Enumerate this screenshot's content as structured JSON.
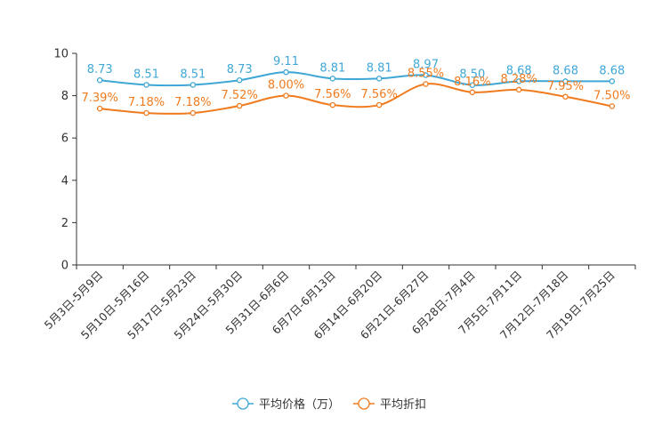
{
  "chart_data": {
    "type": "line",
    "categories": [
      "5月3日-5月9日",
      "5月10日-5月16日",
      "5月17日-5月23日",
      "5月24日-5月30日",
      "5月31日-6月6日",
      "6月7日-6月13日",
      "6月14日-6月20日",
      "6月21日-6月27日",
      "6月28日-7月4日",
      "7月5日-7月11日",
      "7月12日-7月18日",
      "7月19日-7月25日"
    ],
    "ylim": [
      0,
      10
    ],
    "yticks": [
      0,
      2,
      4,
      6,
      8,
      10
    ],
    "grid": false,
    "legend_position": "bottom-center",
    "series": [
      {
        "name": "平均价格（万）",
        "color": "#3fa7d6",
        "values": [
          8.73,
          8.51,
          8.51,
          8.73,
          9.11,
          8.81,
          8.81,
          8.97,
          8.5,
          8.68,
          8.68,
          8.68
        ],
        "labels": [
          "8.73",
          "8.51",
          "8.51",
          "8.73",
          "9.11",
          "8.81",
          "8.81",
          "8.97",
          "8.50",
          "8.68",
          "8.68",
          "8.68"
        ]
      },
      {
        "name": "平均折扣",
        "color": "#f07b1e",
        "values": [
          7.39,
          7.18,
          7.18,
          7.52,
          8.0,
          7.56,
          7.56,
          8.55,
          8.16,
          8.28,
          7.95,
          7.5
        ],
        "labels": [
          "7.39%",
          "7.18%",
          "7.18%",
          "7.52%",
          "8.00%",
          "7.56%",
          "7.56%",
          "8.55%",
          "8.16%",
          "8.28%",
          "7.95%",
          "7.50%"
        ]
      }
    ]
  }
}
